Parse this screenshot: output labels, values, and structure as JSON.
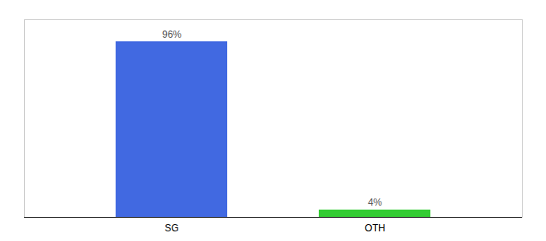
{
  "chart_data": {
    "type": "bar",
    "categories": [
      "SG",
      "OTH"
    ],
    "values": [
      96,
      4
    ],
    "value_labels": [
      "96%",
      "4%"
    ],
    "colors": [
      "#4169e1",
      "#33cc33"
    ],
    "ylim": [
      0,
      108
    ],
    "data_labels": true,
    "tick_labels": "x",
    "grid": false
  }
}
